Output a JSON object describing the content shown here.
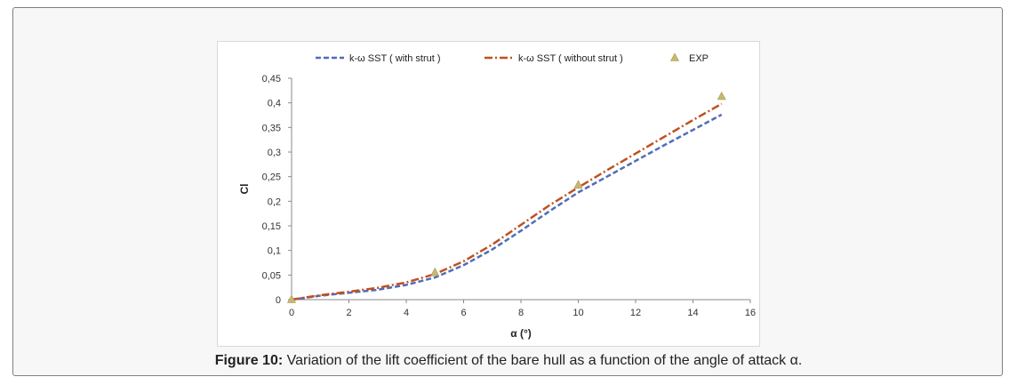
{
  "caption": {
    "label": "Figure 10:",
    "text": " Variation of the lift coefficient of the bare hull as a function of the angle of attack α."
  },
  "chart_data": {
    "type": "line",
    "xlabel": "α (°)",
    "ylabel": "Cl",
    "xlim": [
      0,
      16
    ],
    "ylim": [
      0,
      0.45
    ],
    "x_ticks": [
      "0",
      "2",
      "4",
      "6",
      "8",
      "10",
      "12",
      "14",
      "16"
    ],
    "y_ticks": [
      "0",
      "0,05",
      "0,1",
      "0,15",
      "0,2",
      "0,25",
      "0,3",
      "0,35",
      "0,4",
      "0,45"
    ],
    "grid": false,
    "legend_position": "top",
    "series": [
      {
        "name": "k-ω SST (  with strut  )",
        "style": "dashed",
        "color": "#4f6db8",
        "x": [
          0,
          1,
          2,
          3,
          4,
          5,
          6,
          7,
          8,
          9,
          10,
          11,
          12,
          13,
          14,
          15
        ],
        "y": [
          0,
          0.008,
          0.014,
          0.02,
          0.03,
          0.045,
          0.07,
          0.102,
          0.14,
          0.18,
          0.218,
          0.25,
          0.282,
          0.314,
          0.345,
          0.376
        ]
      },
      {
        "name": "k-ω SST (  without strut  )",
        "style": "dash-dot",
        "color": "#c0501e",
        "x": [
          0,
          1,
          2,
          3,
          4,
          5,
          6,
          7,
          8,
          9,
          10,
          11,
          12,
          13,
          14,
          15
        ],
        "y": [
          0,
          0.009,
          0.016,
          0.024,
          0.035,
          0.052,
          0.078,
          0.112,
          0.152,
          0.192,
          0.228,
          0.263,
          0.297,
          0.331,
          0.365,
          0.398
        ]
      },
      {
        "name": "EXP",
        "style": "triangle-markers",
        "color": "#c8b870",
        "x": [
          0,
          5,
          10,
          15
        ],
        "y": [
          0,
          0.055,
          0.233,
          0.413
        ]
      }
    ]
  }
}
